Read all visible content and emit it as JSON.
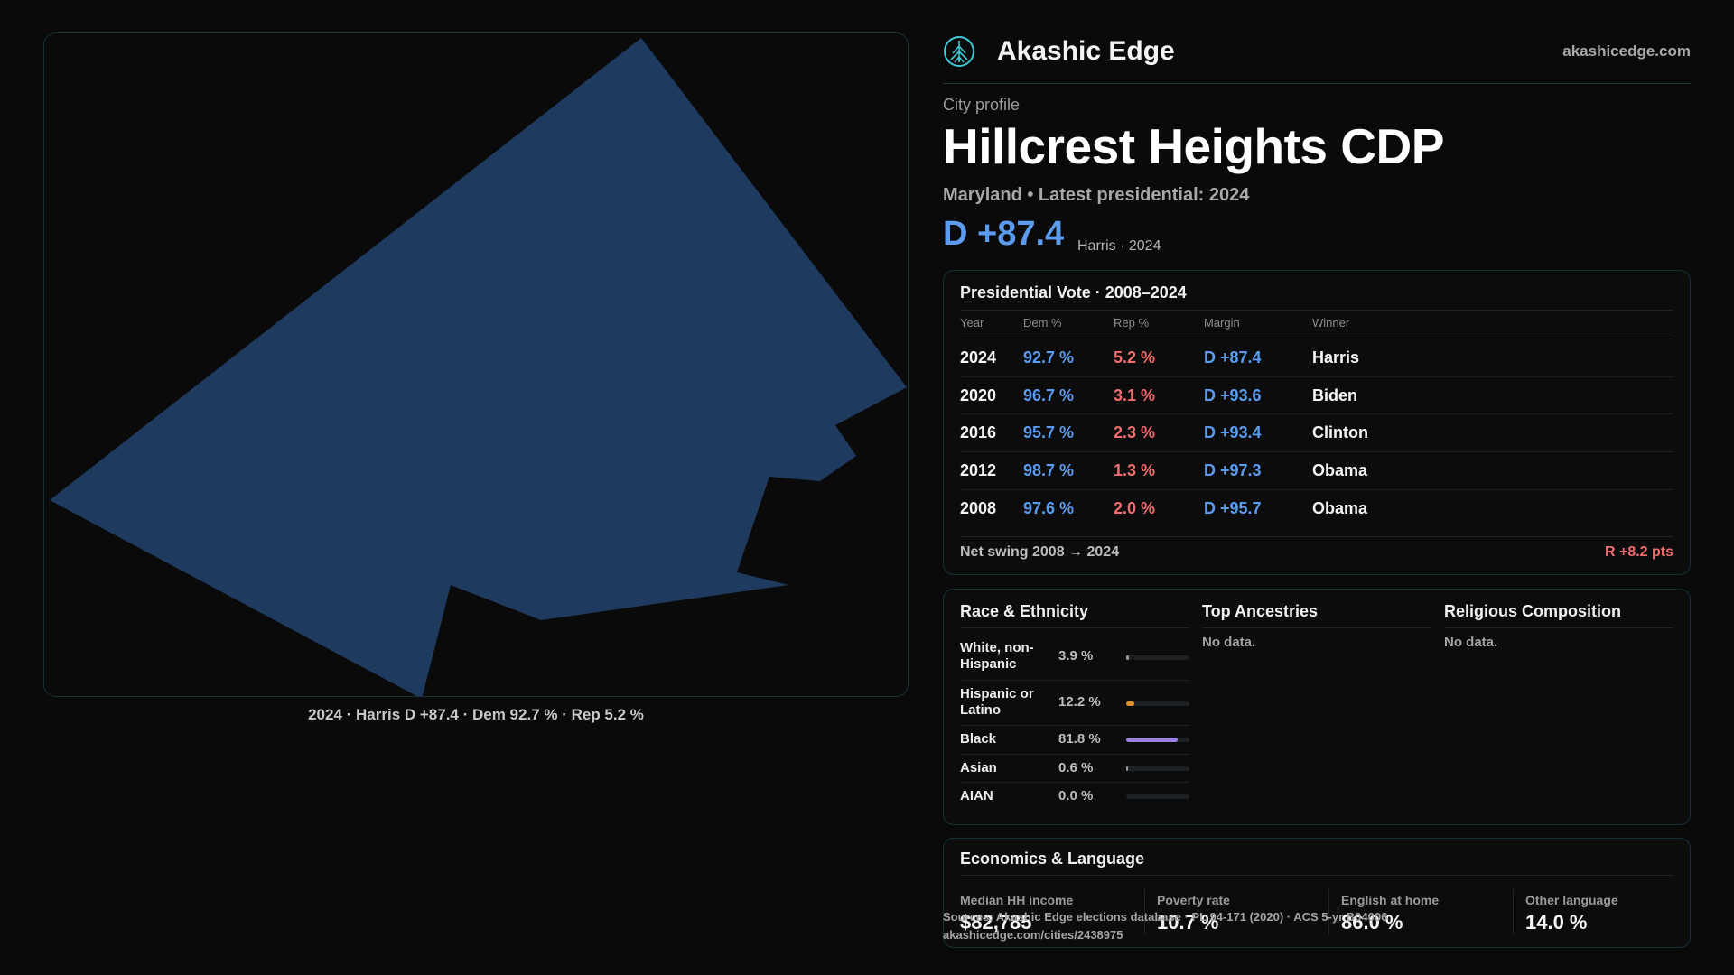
{
  "header": {
    "brand": "Akashic Edge",
    "site": "akashicedge.com",
    "logo_icon": "tree-of-life-icon",
    "accent": "#3ec9d6"
  },
  "profile": {
    "kicker": "City profile",
    "name": "Hillcrest Heights CDP",
    "subtitle": "Maryland • Latest presidential: 2024",
    "margin": "D +87.4",
    "margin_note": "Harris · 2024"
  },
  "map": {
    "fill_color": "#1f3a5f",
    "caption": "2024 · Harris D +87.4 · Dem 92.7 % · Rep 5.2 %"
  },
  "vote": {
    "title": "Presidential Vote · 2008–2024",
    "columns": [
      "Year",
      "Dem %",
      "Rep %",
      "Margin",
      "Winner"
    ],
    "rows": [
      {
        "year": "2024",
        "dem": "92.7 %",
        "rep": "5.2 %",
        "margin": "D +87.4",
        "winner": "Harris"
      },
      {
        "year": "2020",
        "dem": "96.7 %",
        "rep": "3.1 %",
        "margin": "D +93.6",
        "winner": "Biden"
      },
      {
        "year": "2016",
        "dem": "95.7 %",
        "rep": "2.3 %",
        "margin": "D +93.4",
        "winner": "Clinton"
      },
      {
        "year": "2012",
        "dem": "98.7 %",
        "rep": "1.3 %",
        "margin": "D +97.3",
        "winner": "Obama"
      },
      {
        "year": "2008",
        "dem": "97.6 %",
        "rep": "2.0 %",
        "margin": "D +95.7",
        "winner": "Obama"
      }
    ],
    "swing_label": "Net swing 2008 → 2024",
    "swing_value": "R +8.2 pts",
    "dem_color": "#5b9cf0",
    "rep_color": "#f26d6d"
  },
  "demographics": {
    "race": {
      "title": "Race & Ethnicity",
      "rows": [
        {
          "label": "White, non-Hispanic",
          "pct": "3.9 %",
          "share": 0.039,
          "color": "#9a9a9a"
        },
        {
          "label": "Hispanic or Latino",
          "pct": "12.2 %",
          "share": 0.122,
          "color": "#e0902a"
        },
        {
          "label": "Black",
          "pct": "81.8 %",
          "share": 0.818,
          "color": "#9a82e0"
        },
        {
          "label": "Asian",
          "pct": "0.6 %",
          "share": 0.006,
          "color": "#9a9a9a"
        },
        {
          "label": "AIAN",
          "pct": "0.0 %",
          "share": 0.0,
          "color": "#9a9a9a"
        }
      ]
    },
    "ancestry": {
      "title": "Top Ancestries",
      "empty": "No data."
    },
    "religion": {
      "title": "Religious Composition",
      "empty": "No data."
    }
  },
  "economics": {
    "title": "Economics & Language",
    "stats": [
      {
        "label": "Median HH income",
        "value": "$82,785"
      },
      {
        "label": "Poverty rate",
        "value": "10.7 %"
      },
      {
        "label": "English at home",
        "value": "86.0 %"
      },
      {
        "label": "Other language",
        "value": "14.0 %"
      }
    ]
  },
  "source": {
    "line1": "Sources: Akashic Edge elections database · PL 94-171 (2020) · ACS 5-yr B04006",
    "line2": "akashicedge.com/cities/2438975"
  }
}
